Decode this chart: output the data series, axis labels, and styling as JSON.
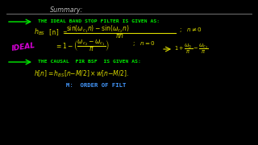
{
  "bg_color": "#000000",
  "summary_text": "Summary:",
  "summary_color": "#bbbbbb",
  "line_color": "#888888",
  "arrow_color": "#00ee00",
  "green_color": "#00ee00",
  "yellow_color": "#dddd00",
  "magenta_color": "#dd00dd",
  "blue_color": "#4499ff",
  "title1": "THE IDEAL BAND STOP FILTER IS GIVEN AS:",
  "ideal_label": "IDEAL",
  "title2": "THE CAUSAL  FIR BSF  IS GIVEN AS:",
  "causal_formula": "$h[n] = h_{BS}[n{-}M/2] \\times w[n{-}M/2].$",
  "order_text": "M:  ORDER OF FILT"
}
